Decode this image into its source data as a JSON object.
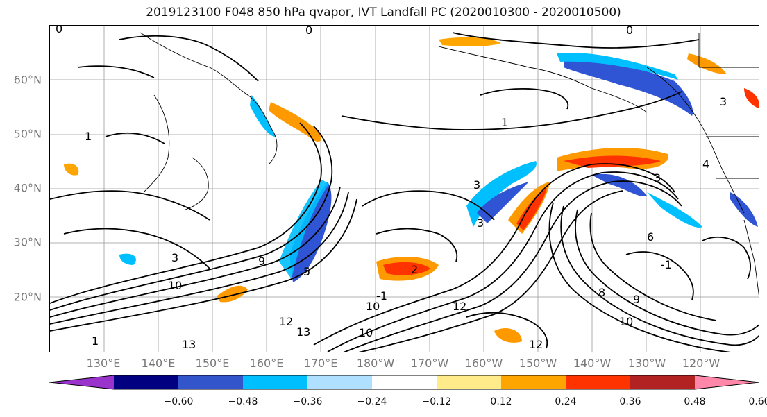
{
  "title": "2019123100 F048 850 hPa qvapor, IVT Landfall PC (2020010300 - 2020010500)",
  "map": {
    "lat_labels": [
      "60°N",
      "50°N",
      "40°N",
      "30°N",
      "20°N"
    ],
    "lon_labels": [
      "130°E",
      "140°E",
      "150°E",
      "160°E",
      "170°E",
      "180°W",
      "170°W",
      "160°W",
      "150°W",
      "140°W",
      "130°W",
      "120°W"
    ],
    "contour_labels": [
      "0",
      "0",
      "0",
      "1",
      "3",
      "1",
      "3",
      "4",
      "3",
      "5",
      "2",
      "3",
      "3",
      "-1",
      "10",
      "9",
      "13",
      "12",
      "10",
      "12",
      "10",
      "13",
      "10",
      "9",
      "-1",
      "1",
      "12",
      "8",
      "6"
    ],
    "fill_colors": {
      "strong_positive": "#ff3300",
      "positive": "#ff9900",
      "weak_positive": "#ffe680",
      "weak_negative": "#aee1ff",
      "negative": "#00bfff",
      "strong_negative": "#2f55d4",
      "deep_negative": "#000080"
    }
  },
  "colorbar": {
    "colors": [
      "#9933cc",
      "#000080",
      "#3355cc",
      "#00bfff",
      "#b0e0ff",
      "#ffffff",
      "#ffeb8a",
      "#ffa500",
      "#ff3300",
      "#b22222",
      "#ff88aa"
    ],
    "tick_labels": [
      "−0.60",
      "−0.48",
      "−0.36",
      "−0.24",
      "−0.12",
      "0.12",
      "0.24",
      "0.36",
      "0.48",
      "0.60"
    ]
  }
}
